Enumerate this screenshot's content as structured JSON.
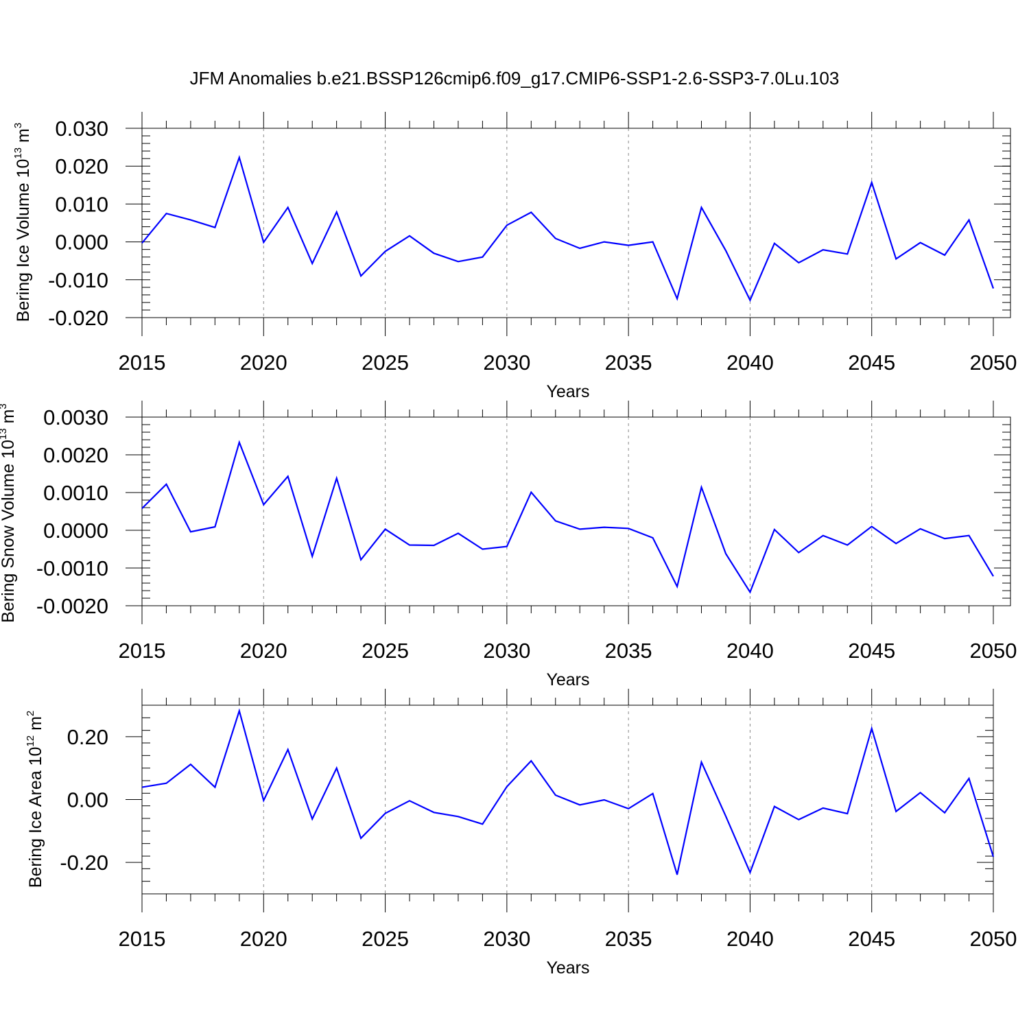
{
  "title": "JFM Anomalies b.e21.BSSP126cmip6.f09_g17.CMIP6-SSP1-2.6-SSP3-7.0Lu.103",
  "chart_data": [
    {
      "type": "line",
      "ylabel": {
        "prefix": "Bering Ice Volume 10",
        "exponent": "13",
        "unit": " m",
        "unit_exponent": "3"
      },
      "xlabel": "Years",
      "xlim": [
        2015,
        2050
      ],
      "ylim": [
        -0.02,
        0.03
      ],
      "xticks": [
        "2015",
        "2020",
        "2025",
        "2030",
        "2035",
        "2040",
        "2045",
        "2050"
      ],
      "yticks": [
        {
          "value": 0.03,
          "label": "0.030"
        },
        {
          "value": 0.02,
          "label": "0.020"
        },
        {
          "value": 0.01,
          "label": "0.010"
        },
        {
          "value": 0.0,
          "label": "0.000"
        },
        {
          "value": -0.01,
          "label": "-0.010"
        },
        {
          "value": -0.02,
          "label": "-0.020"
        }
      ],
      "series": [
        {
          "name": "Bering Ice Volume",
          "color": "#0000ff",
          "x": [
            2015,
            2016,
            2017,
            2018,
            2019,
            2020,
            2021,
            2022,
            2023,
            2024,
            2025,
            2026,
            2027,
            2028,
            2029,
            2030,
            2031,
            2032,
            2033,
            2034,
            2035,
            2036,
            2037,
            2038,
            2039,
            2040,
            2041,
            2042,
            2043,
            2044,
            2045,
            2046,
            2047,
            2048,
            2049,
            2050
          ],
          "values": [
            -0.0003,
            0.0075,
            0.0058,
            0.0038,
            0.0223,
            -0.0001,
            0.0091,
            -0.0057,
            0.0079,
            -0.009,
            -0.0025,
            0.0016,
            -0.003,
            -0.0052,
            -0.004,
            0.0044,
            0.0078,
            0.0009,
            -0.0017,
            0.0,
            -0.0009,
            0.0,
            -0.015,
            0.0091,
            -0.0023,
            -0.0154,
            -0.0004,
            -0.0055,
            -0.0021,
            -0.0032,
            0.0157,
            -0.0045,
            -0.0002,
            -0.0035,
            0.0058,
            -0.0123
          ]
        }
      ]
    },
    {
      "type": "line",
      "ylabel": {
        "prefix": "Bering Snow Volume 10",
        "exponent": "13",
        "unit": " m",
        "unit_exponent": "3"
      },
      "xlabel": "Years",
      "xlim": [
        2015,
        2050
      ],
      "ylim": [
        -0.002,
        0.003
      ],
      "xticks": [
        "2015",
        "2020",
        "2025",
        "2030",
        "2035",
        "2040",
        "2045",
        "2050"
      ],
      "yticks": [
        {
          "value": 0.003,
          "label": "0.0030"
        },
        {
          "value": 0.002,
          "label": "0.0020"
        },
        {
          "value": 0.001,
          "label": "0.0010"
        },
        {
          "value": 0.0,
          "label": "0.0000"
        },
        {
          "value": -0.001,
          "label": "-0.0010"
        },
        {
          "value": -0.002,
          "label": "-0.0020"
        }
      ],
      "series": [
        {
          "name": "Bering Snow Volume",
          "color": "#0000ff",
          "x": [
            2015,
            2016,
            2017,
            2018,
            2019,
            2020,
            2021,
            2022,
            2023,
            2024,
            2025,
            2026,
            2027,
            2028,
            2029,
            2030,
            2031,
            2032,
            2033,
            2034,
            2035,
            2036,
            2037,
            2038,
            2039,
            2040,
            2041,
            2042,
            2043,
            2044,
            2045,
            2046,
            2047,
            2048,
            2049,
            2050
          ],
          "values": [
            0.00058,
            0.00122,
            -4e-05,
            9e-05,
            0.00233,
            0.00068,
            0.00143,
            -0.00069,
            0.00138,
            -0.00078,
            3e-05,
            -0.00039,
            -0.0004,
            -8e-05,
            -0.0005,
            -0.00043,
            0.00101,
            0.00025,
            3e-05,
            8e-05,
            5e-05,
            -0.0002,
            -0.00149,
            0.00114,
            -0.00062,
            -0.00164,
            2e-05,
            -0.00059,
            -0.00014,
            -0.00039,
            0.0001,
            -0.00035,
            4e-05,
            -0.00022,
            -0.00014,
            -0.00122
          ]
        }
      ]
    },
    {
      "type": "line",
      "ylabel": {
        "prefix": "Bering Ice Area 10",
        "exponent": "12",
        "unit": " m",
        "unit_exponent": "2"
      },
      "xlabel": "Years",
      "xlim": [
        2015,
        2050
      ],
      "ylim": [
        -0.3,
        0.3
      ],
      "xticks": [
        "2015",
        "2020",
        "2025",
        "2030",
        "2035",
        "2040",
        "2045",
        "2050"
      ],
      "yticks": [
        {
          "value": 0.2,
          "label": "0.20"
        },
        {
          "value": 0.0,
          "label": "0.00"
        },
        {
          "value": -0.2,
          "label": "-0.20"
        }
      ],
      "series": [
        {
          "name": "Bering Ice Area",
          "color": "#0000ff",
          "x": [
            2015,
            2016,
            2017,
            2018,
            2019,
            2020,
            2021,
            2022,
            2023,
            2024,
            2025,
            2026,
            2027,
            2028,
            2029,
            2030,
            2031,
            2032,
            2033,
            2034,
            2035,
            2036,
            2037,
            2038,
            2039,
            2040,
            2041,
            2042,
            2043,
            2044,
            2045,
            2046,
            2047,
            2048,
            2049,
            2050
          ],
          "values": [
            0.039,
            0.052,
            0.112,
            0.039,
            0.282,
            -0.003,
            0.159,
            -0.062,
            0.1,
            -0.123,
            -0.044,
            -0.004,
            -0.041,
            -0.054,
            -0.078,
            0.041,
            0.123,
            0.014,
            -0.017,
            -0.001,
            -0.029,
            0.019,
            -0.239,
            0.119,
            -0.053,
            -0.232,
            -0.022,
            -0.064,
            -0.027,
            -0.045,
            0.226,
            -0.038,
            0.022,
            -0.042,
            0.067,
            -0.182
          ]
        }
      ]
    }
  ]
}
